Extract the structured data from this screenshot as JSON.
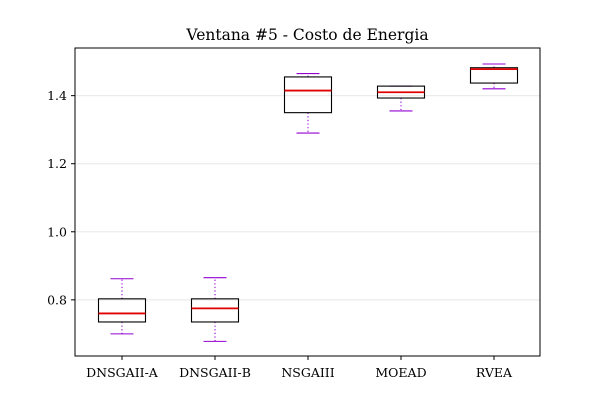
{
  "chart_data": {
    "type": "box",
    "title": "Ventana #5 - Costo de Energia",
    "xlabel": "",
    "ylabel": "",
    "ylim": [
      0.635,
      1.54
    ],
    "yticks": [
      0.8,
      1.0,
      1.2,
      1.4
    ],
    "ytick_labels": [
      "0.8",
      "1.0",
      "1.2",
      "1.4"
    ],
    "grid": "horizontal",
    "categories": [
      "DNSGAII-A",
      "DNSGAII-B",
      "NSGAIII",
      "MOEAD",
      "RVEA"
    ],
    "series": [
      {
        "category": "DNSGAII-A",
        "whisker_low": 0.7,
        "q1": 0.735,
        "median": 0.76,
        "q3": 0.803,
        "whisker_high": 0.862
      },
      {
        "category": "DNSGAII-B",
        "whisker_low": 0.678,
        "q1": 0.735,
        "median": 0.775,
        "q3": 0.803,
        "whisker_high": 0.865
      },
      {
        "category": "NSGAIII",
        "whisker_low": 1.29,
        "q1": 1.35,
        "median": 1.415,
        "q3": 1.455,
        "whisker_high": 1.465
      },
      {
        "category": "MOEAD",
        "whisker_low": 1.355,
        "q1": 1.393,
        "median": 1.41,
        "q3": 1.428,
        "whisker_high": 1.428
      },
      {
        "category": "RVEA",
        "whisker_low": 1.42,
        "q1": 1.437,
        "median": 1.478,
        "q3": 1.482,
        "whisker_high": 1.493
      }
    ],
    "colors": {
      "box": "#000000",
      "median": "#e00000",
      "whisker": "#9400d3",
      "grid": "#ebebeb",
      "axis": "#000000"
    }
  }
}
